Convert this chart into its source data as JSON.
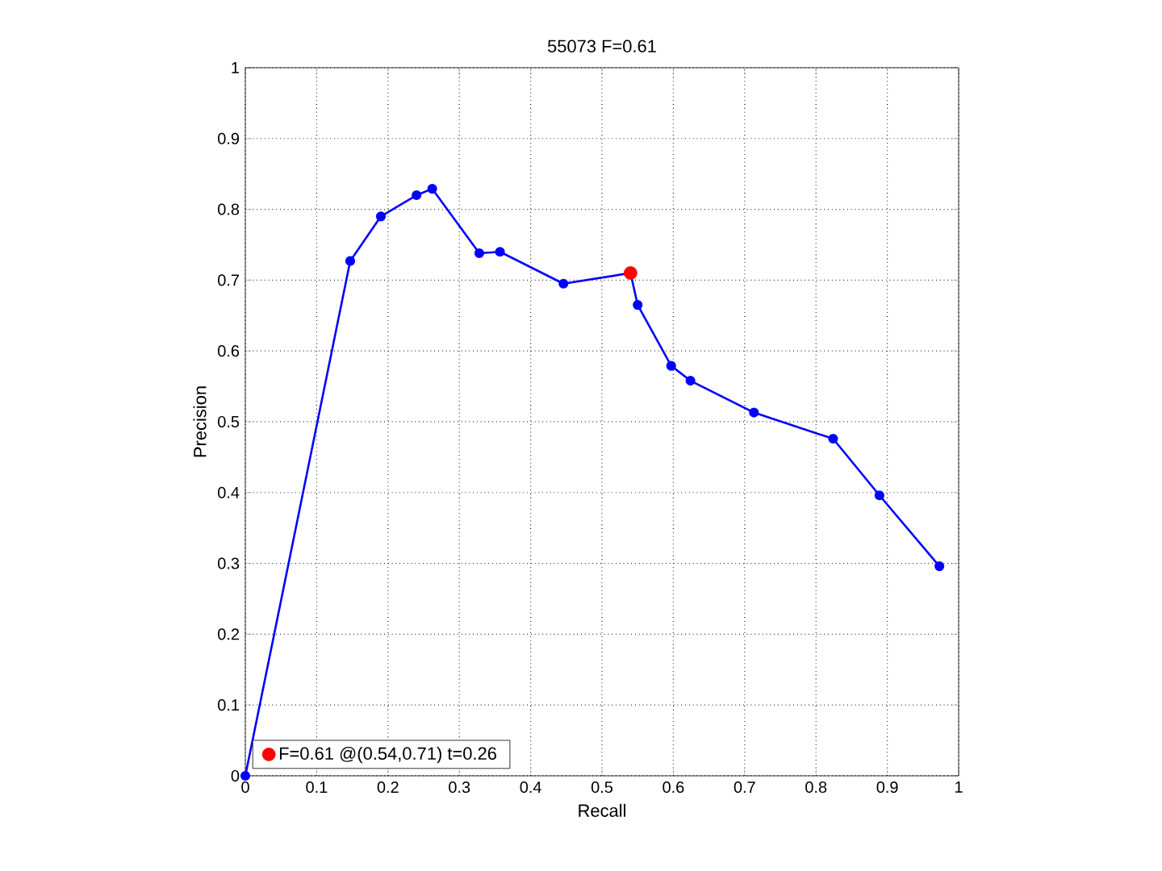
{
  "chart_data": {
    "type": "line",
    "title": "55073 F=0.61",
    "xlabel": "Recall",
    "ylabel": "Precision",
    "xlim": [
      0,
      1
    ],
    "ylim": [
      0,
      1
    ],
    "xticks": [
      0,
      0.1,
      0.2,
      0.3,
      0.4,
      0.5,
      0.6,
      0.7,
      0.8,
      0.9,
      1
    ],
    "yticks": [
      0,
      0.1,
      0.2,
      0.3,
      0.4,
      0.5,
      0.6,
      0.7,
      0.8,
      0.9,
      1
    ],
    "grid": true,
    "legend": "bottom left",
    "marker": "circle",
    "line_style": "solid",
    "series": [
      {
        "color": "#0000ff",
        "x": [
          0,
          0.147,
          0.19,
          0.24,
          0.262,
          0.328,
          0.357,
          0.446,
          0.54,
          0.55,
          0.597,
          0.624,
          0.713,
          0.824,
          0.889,
          0.973
        ],
        "values": [
          0,
          0.727,
          0.79,
          0.82,
          0.829,
          0.738,
          0.74,
          0.695,
          0.71,
          0.665,
          0.579,
          0.558,
          0.513,
          0.476,
          0.396,
          0.296
        ]
      },
      {
        "type": "scatter",
        "name": "F=0.61 @(0.54,0.71) t=0.26",
        "color": "#ff0000",
        "x": [
          0.54
        ],
        "values": [
          0.71
        ]
      }
    ]
  }
}
